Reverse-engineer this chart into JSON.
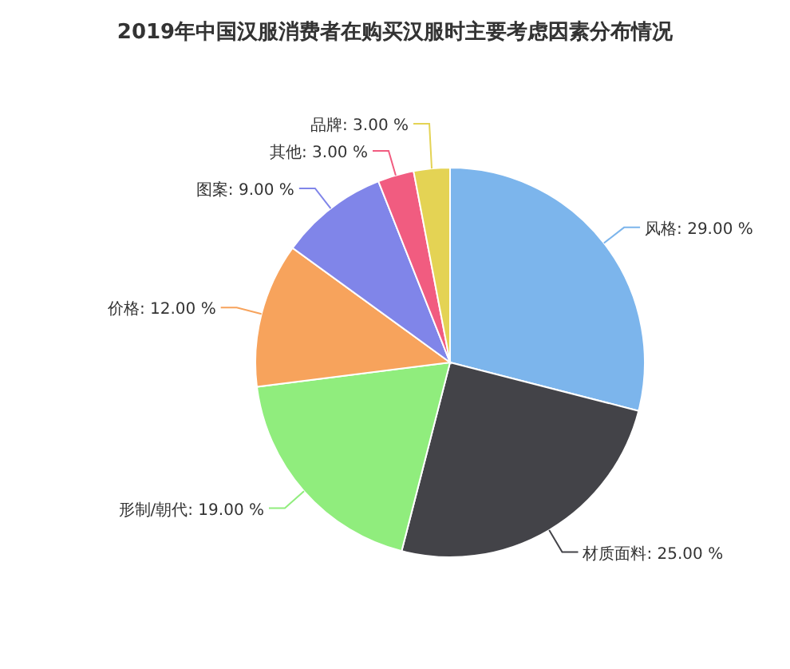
{
  "chart_data": {
    "type": "pie",
    "title": "2019年中国汉服消费者在购买汉服时主要考虑因素分布情况",
    "categories": [
      "风格",
      "材质面料",
      "形制/朝代",
      "价格",
      "图案",
      "其他",
      "品牌"
    ],
    "values": [
      29,
      25,
      19,
      12,
      9,
      3,
      3
    ],
    "colors": [
      "#7cb5ec",
      "#434348",
      "#90ed7d",
      "#f7a35c",
      "#8085e9",
      "#f15c80",
      "#e4d354"
    ],
    "value_labels": [
      ": 29.00 %",
      ": 25.00 %",
      ": 19.00 %",
      ": 12.00 %",
      ": 9.00 %",
      ": 3.00 %",
      ": 3.00 %"
    ],
    "legend": false
  }
}
